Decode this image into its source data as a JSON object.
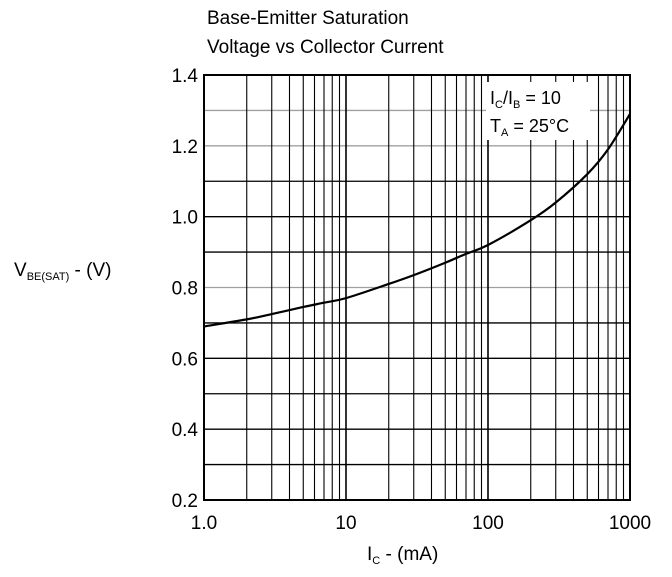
{
  "chart_data": {
    "type": "line",
    "title_line1": "Base-Emitter Saturation",
    "title_line2": "Voltage vs Collector Current",
    "ylabel": {
      "main": "V",
      "sub": "BE(SAT)",
      "suffix": " - (V)"
    },
    "xlabel": {
      "main": "I",
      "sub": "C",
      "suffix": " - (mA)"
    },
    "x_scale": "log",
    "xlim": [
      1,
      1000
    ],
    "ylim": [
      0.2,
      1.4
    ],
    "x_ticks": [
      1,
      10,
      100,
      1000
    ],
    "x_tick_labels": [
      "1.0",
      "10",
      "100",
      "1000"
    ],
    "y_ticks": [
      0.2,
      0.4,
      0.6,
      0.8,
      1.0,
      1.2,
      1.4
    ],
    "y_tick_labels": [
      "0.2",
      "0.4",
      "0.6",
      "0.8",
      "1.0",
      "1.2",
      "1.4"
    ],
    "grid": true,
    "conditions": [
      {
        "main": "I",
        "sub": "C",
        "mid": "/I",
        "sub2": "B",
        "suffix": " = 10"
      },
      {
        "main": "T",
        "sub": "A",
        "mid": " = 25°C",
        "sub2": "",
        "suffix": ""
      }
    ],
    "series": [
      {
        "x": [
          1,
          2,
          3,
          5,
          7,
          10,
          20,
          30,
          50,
          70,
          100,
          200,
          300,
          500,
          700,
          1000
        ],
        "y": [
          0.69,
          0.71,
          0.725,
          0.745,
          0.757,
          0.77,
          0.81,
          0.835,
          0.87,
          0.895,
          0.92,
          0.99,
          1.04,
          1.12,
          1.19,
          1.29
        ]
      }
    ],
    "line_color": "#000000",
    "grid_color": "#000000",
    "highlight_grid_color": "#a0a0a0"
  }
}
